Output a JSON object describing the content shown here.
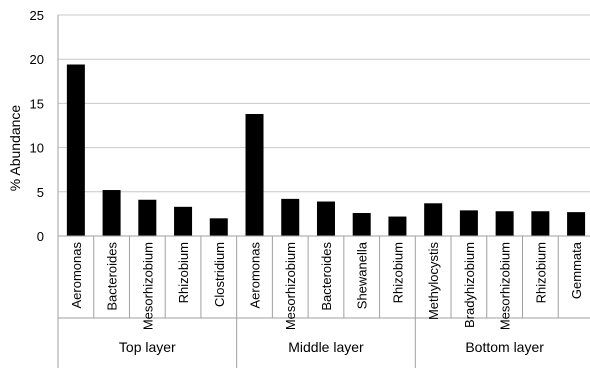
{
  "chart_data": {
    "type": "bar",
    "title": "",
    "xlabel": "",
    "ylabel": "% Abundance",
    "ylim": [
      0,
      25
    ],
    "yticks": [
      0,
      5,
      10,
      15,
      20,
      25
    ],
    "grid": true,
    "legend": "none",
    "bar_color": "#000000",
    "grid_color": "#c8c8c8",
    "groups": [
      {
        "name": "Top layer",
        "categories": [
          "Aeromonas",
          "Bacteroides",
          "Mesorhizobium",
          "Rhizobium",
          "Clostridium"
        ],
        "values": [
          19.4,
          5.2,
          4.1,
          3.3,
          2.0
        ]
      },
      {
        "name": "Middle layer",
        "categories": [
          "Aeromonas",
          "Mesorhizobium",
          "Bacteroides",
          "Shewanella",
          "Rhizobium"
        ],
        "values": [
          13.8,
          4.2,
          3.9,
          2.6,
          2.2
        ]
      },
      {
        "name": "Bottom layer",
        "categories": [
          "Methylocystis",
          "Bradyhizobium",
          "Mesorhizobium",
          "Rhizobium",
          "Gemmata"
        ],
        "values": [
          3.7,
          2.9,
          2.8,
          2.8,
          2.7
        ]
      }
    ]
  }
}
